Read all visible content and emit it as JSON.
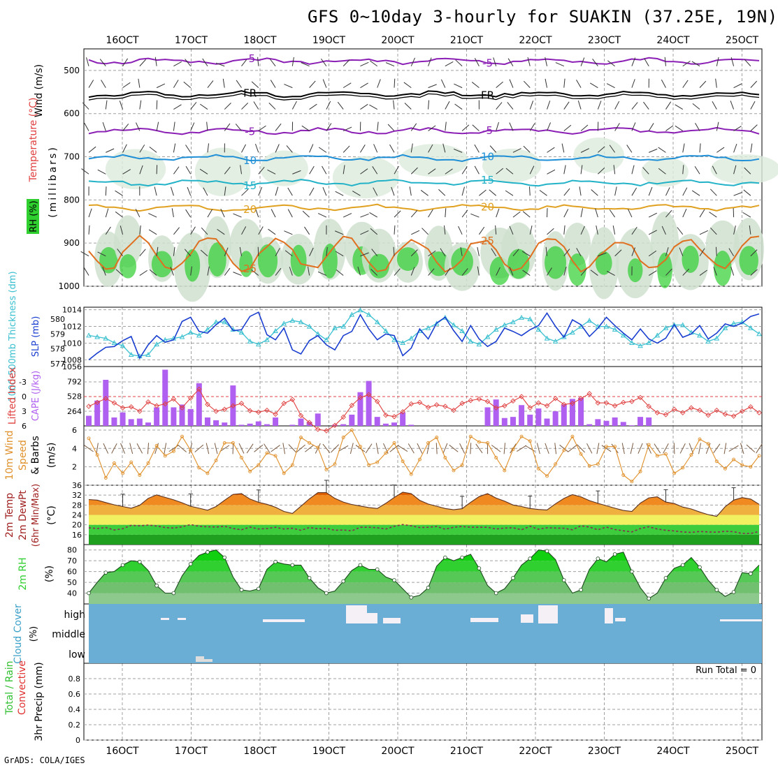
{
  "title": "GFS 0~10day 3-hourly for SUAKIN (37.25E, 19N)",
  "credit": "GrADS: COLA/IGES",
  "dates": [
    "16OCT",
    "17OCT",
    "18OCT",
    "19OCT",
    "20OCT",
    "21OCT",
    "22OCT",
    "23OCT",
    "24OCT",
    "25OCT"
  ],
  "colors": {
    "frame": "#000000",
    "grid": "#a0a0a0",
    "purple": "#8b1fb5",
    "blue": "#1e8fd6",
    "cyan": "#22b2c8",
    "orange": "#e0a020",
    "slp": "#1a3fd0",
    "thickness": "#3ac0d0",
    "cape_bar": "#b060f0",
    "lifted": "#e04040",
    "wind": "#e0902a",
    "cloud_bg": "#6aaed6",
    "rh_green": "#2fcf2f"
  },
  "panels": {
    "upper_air": {
      "ylabel_parts": [
        "Wind (m/s)",
        "Temperature (°C)",
        "RH (%)"
      ],
      "ylabel_units": "(millibars)",
      "yticks": [
        "500",
        "600",
        "700",
        "800",
        "900",
        "1000"
      ],
      "isotherms": [
        {
          "label": "-5",
          "color": "#8b1fb5",
          "level_mb": 478
        },
        {
          "label": "FR",
          "color": "#000000",
          "level_mb": 555
        },
        {
          "label": "-5",
          "color": "#8b1fb5",
          "level_mb": 640
        },
        {
          "label": "10",
          "color": "#1e8fd6",
          "level_mb": 703
        },
        {
          "label": "15",
          "color": "#22b2c8",
          "level_mb": 760
        },
        {
          "label": "20",
          "color": "#e0a020",
          "level_mb": 818
        },
        {
          "label": "25",
          "color": "#e07020",
          "level_mb": 925
        }
      ],
      "rh_contours": [
        "30",
        "50"
      ]
    },
    "slp_thickness": {
      "ylabel_left": "1000-500mb Thickness (dm)",
      "ylabel_right": "SLP (mb)",
      "left_ticks": [
        "580",
        "579",
        "578",
        "577"
      ],
      "right_ticks": [
        "1014",
        "1012",
        "1010",
        "1008"
      ]
    },
    "lifted_cape": {
      "ylabel_left": "Lifted Index",
      "ylabel_right": "CAPE (J/kg)",
      "left_ticks": [
        "-3",
        "0",
        "3",
        "6"
      ],
      "right_ticks": [
        "1056",
        "792",
        "528",
        "264"
      ]
    },
    "wind10m": {
      "ylabel": [
        "10m Wind",
        "Speed",
        "& Barbs"
      ],
      "units": "(m/s)",
      "ticks": [
        "6",
        "4",
        "2"
      ]
    },
    "temp2m": {
      "ylabel": [
        "2m Temp",
        "2m DewPt",
        "(6hr Min/Max)"
      ],
      "units": "(°C)",
      "ticks": [
        "36",
        "32",
        "28",
        "24",
        "20",
        "16"
      ]
    },
    "rh2m": {
      "ylabel": "2m RH",
      "units": "(%)",
      "ticks": [
        "80",
        "70",
        "60",
        "50",
        "40"
      ]
    },
    "cloud": {
      "ylabel": "Cloud Cover",
      "units": "(%)",
      "levels": [
        "high",
        "middle",
        "low"
      ]
    },
    "precip": {
      "ylabel_parts": [
        "Total / Rain",
        "Convective"
      ],
      "units": "3hr Precip (mm)",
      "ticks": [
        "0.8",
        "0.6",
        "0.4",
        "0.2",
        "0"
      ],
      "run_total": "Run Total = 0"
    }
  },
  "chart_data": [
    {
      "type": "line",
      "name_hint": "SLP",
      "x_start": "15OCT 12Z",
      "step_hours": 3,
      "series": [
        {
          "name": "SLP (mb)",
          "values": [
            1008.0,
            1008.8,
            1009.5,
            1009.6,
            1010.3,
            1010.8,
            1008.2,
            1009.8,
            1010.9,
            1010.1,
            1010.4,
            1012.6,
            1013.1,
            1011.4,
            1011.2,
            1012.2,
            1013.0,
            1011.5,
            1011.6,
            1013.2,
            1013.7,
            1011.0,
            1010.4,
            1011.8,
            1009.2,
            1008.7,
            1010.3,
            1010.9,
            1009.8,
            1009.2,
            1010.9,
            1011.4,
            1013.4,
            1011.7,
            1010.4,
            1011.1,
            1010.9,
            1008.5,
            1009.4,
            1011.7,
            1010.5,
            1012.4,
            1013.1,
            1011.5,
            1010.2,
            1012.1,
            1010.5,
            1009.6,
            1010.2,
            1011.8,
            1011.4,
            1010.9,
            1011.6,
            1012.1,
            1013.6,
            1012.0,
            1010.7,
            1012.8,
            1012.2,
            1010.8,
            1011.8,
            1013.1,
            1012.1,
            1011.2,
            1010.4,
            1011.7,
            1010.5,
            1010.0,
            1010.6,
            1012.2,
            1010.7,
            1011.1,
            1012.1,
            1010.5,
            1011.2,
            1012.3,
            1012.0,
            1012.4,
            1013.2,
            1013.5
          ]
        }
      ]
    },
    {
      "type": "line",
      "name_hint": "Thickness",
      "series": [
        {
          "name": "Thickness (dm)",
          "values": [
            578.9,
            578.8,
            578.7,
            578.4,
            578.2,
            577.6,
            577.5,
            577.6,
            578.3,
            578.6,
            578.7,
            578.8,
            579.1,
            578.9,
            579.3,
            579.8,
            579.8,
            579.3,
            579.1,
            578.5,
            578.3,
            578.6,
            579.2,
            579.7,
            579.9,
            579.8,
            579.5,
            579.0,
            578.6,
            579.4,
            579.5,
            580.3,
            580.6,
            580.3,
            579.8,
            579.2,
            578.6,
            578.4,
            578.7,
            579.2,
            579.4,
            579.7,
            580.1,
            579.6,
            579.2,
            578.5,
            578.3,
            578.8,
            579.3,
            579.6,
            579.8,
            580.1,
            580.0,
            579.3,
            578.7,
            578.5,
            578.8,
            579.1,
            579.5,
            579.9,
            579.5,
            579.5,
            579.3,
            578.9,
            578.4,
            578.2,
            578.4,
            578.9,
            579.4,
            579.6,
            579.6,
            579.1,
            578.9,
            578.5,
            578.7,
            579.4,
            579.7,
            579.8,
            579.4,
            579.0
          ]
        }
      ]
    },
    {
      "type": "bar",
      "name_hint": "CAPE",
      "series": [
        {
          "name": "CAPE (J/kg)",
          "values": [
            180,
            450,
            820,
            150,
            240,
            120,
            130,
            60,
            330,
            1000,
            330,
            380,
            300,
            760,
            150,
            100,
            60,
            720,
            20,
            40,
            80,
            30,
            150,
            0,
            20,
            130,
            70,
            220,
            0,
            20,
            30,
            200,
            600,
            800,
            160,
            40,
            60,
            240,
            20,
            0,
            0,
            0,
            0,
            0,
            0,
            0,
            0,
            330,
            470,
            140,
            160,
            370,
            200,
            310,
            130,
            260,
            380,
            480,
            500,
            30,
            120,
            90,
            150,
            70,
            10,
            160,
            150,
            0,
            0,
            0,
            0,
            0,
            0,
            0,
            0,
            0,
            0,
            0,
            0,
            0
          ]
        }
      ]
    },
    {
      "type": "line",
      "name_hint": "Lifted Index",
      "series": [
        {
          "name": "Lifted Index",
          "values": [
            2.0,
            1.2,
            0.4,
            1.3,
            2.3,
            2.1,
            3.0,
            1.1,
            1.9,
            1.5,
            0.5,
            2.3,
            0.3,
            -1.5,
            1.6,
            3.0,
            2.6,
            1.9,
            1.4,
            2.9,
            3.2,
            2.8,
            3.6,
            1.4,
            0.6,
            3.9,
            5.3,
            6.7,
            7.0,
            5.9,
            4.2,
            1.8,
            0.2,
            -0.4,
            1.0,
            3.8,
            4.1,
            3.1,
            1.5,
            1.2,
            2.2,
            1.7,
            2.0,
            2.8,
            1.4,
            0.8,
            0.5,
            1.0,
            2.3,
            1.9,
            0.9,
            0.0,
            2.3,
            1.3,
            1.9,
            0.4,
            1.6,
            1.4,
            0.4,
            -0.6,
            1.3,
            1.3,
            1.9,
            1.2,
            1.0,
            0.2,
            2.0,
            3.3,
            3.7,
            2.6,
            3.3,
            2.3,
            2.8,
            3.8,
            2.8,
            3.6,
            4.0,
            3.0,
            2.1,
            3.3
          ]
        }
      ]
    },
    {
      "type": "line",
      "name_hint": "10m Wind Speed",
      "series": [
        {
          "name": "10m Wind Speed (m/s)",
          "values": [
            5.1,
            3.3,
            0.8,
            2.4,
            1.3,
            2.5,
            1.1,
            2.4,
            4.3,
            3.2,
            3.7,
            5.3,
            3.8,
            1.9,
            1.3,
            2.7,
            4.6,
            4.6,
            3.0,
            1.5,
            2.2,
            3.5,
            3.2,
            1.3,
            2.2,
            5.2,
            4.6,
            4.1,
            1.7,
            2.3,
            5.2,
            6.0,
            4.2,
            2.2,
            2.5,
            3.5,
            4.6,
            2.6,
            1.2,
            2.8,
            4.6,
            5.2,
            3.0,
            1.6,
            2.2,
            5.3,
            4.7,
            4.6,
            3.0,
            1.6,
            3.9,
            5.3,
            4.8,
            1.8,
            1.0,
            2.3,
            3.8,
            5.3,
            3.4,
            2.1,
            2.3,
            4.2,
            4.2,
            1.1,
            0.4,
            1.5,
            4.4,
            3.2,
            3.4,
            1.3,
            1.9,
            3.3,
            5.0,
            4.5,
            2.6,
            1.8,
            2.8,
            2.2,
            2.0,
            3.2
          ]
        }
      ]
    },
    {
      "type": "area",
      "name_hint": "2m Temp",
      "series": [
        {
          "name": "2m Temp (°C)",
          "values": [
            30.2,
            30.0,
            29.0,
            28.1,
            27.4,
            26.7,
            27.9,
            30.7,
            32.1,
            31.1,
            30.1,
            28.9,
            27.5,
            26.7,
            25.9,
            27.4,
            29.9,
            32.3,
            32.6,
            30.4,
            29.1,
            28.3,
            27.1,
            25.4,
            24.6,
            27.5,
            30.5,
            33.0,
            33.0,
            30.7,
            29.2,
            28.2,
            27.6,
            27.0,
            26.6,
            28.7,
            31.1,
            33.2,
            32.6,
            29.9,
            28.4,
            27.5,
            26.6,
            26.1,
            26.5,
            29.1,
            31.4,
            32.6,
            30.8,
            29.6,
            28.0,
            27.4,
            26.6,
            26.2,
            26.0,
            28.5,
            30.7,
            32.2,
            31.3,
            29.8,
            28.7,
            27.7,
            26.7,
            25.8,
            25.4,
            28.8,
            30.9,
            31.3,
            29.2,
            28.6,
            27.2,
            26.4,
            25.2,
            24.1,
            23.4,
            27.3,
            30.0,
            31.0,
            30.4,
            28.3
          ]
        },
        {
          "name": "2m DewPt (°C)",
          "values": [
            18.8,
            18.5,
            18.9,
            17.9,
            18.4,
            19.8,
            19.6,
            19.9,
            19.5,
            18.9,
            18.7,
            19.2,
            20.1,
            19.4,
            19.2,
            19.1,
            19.4,
            18.5,
            18.0,
            19.1,
            18.3,
            18.5,
            19.0,
            18.3,
            18.6,
            17.8,
            18.9,
            18.4,
            18.6,
            17.8,
            17.9,
            17.6,
            19.0,
            19.0,
            18.8,
            18.3,
            19.4,
            20.1,
            19.6,
            18.9,
            19.0,
            19.3,
            18.2,
            19.0,
            19.3,
            19.0,
            19.0,
            19.0,
            18.3,
            18.7,
            18.8,
            18.0,
            19.4,
            18.2,
            18.8,
            18.7,
            18.6,
            18.0,
            19.6,
            19.1,
            18.0,
            19.1,
            18.1,
            17.6,
            17.1,
            18.5,
            19.2,
            18.3,
            17.8,
            17.5,
            17.1,
            16.9,
            17.3,
            17.1,
            17.0,
            17.4,
            17.2,
            16.5,
            16.5,
            17.3
          ]
        }
      ]
    },
    {
      "type": "area",
      "name_hint": "2m RH",
      "series": [
        {
          "name": "2m RH (%)",
          "values": [
            40,
            50,
            59,
            60,
            66,
            70,
            69,
            61,
            47,
            40,
            40,
            56,
            67,
            75,
            78,
            80,
            73,
            55,
            43,
            42,
            44,
            62,
            69,
            67,
            66,
            66,
            54,
            45,
            40,
            42,
            51,
            61,
            66,
            62,
            62,
            55,
            52,
            44,
            36,
            38,
            45,
            65,
            73,
            70,
            73,
            76,
            63,
            47,
            40,
            44,
            54,
            66,
            72,
            80,
            79,
            71,
            52,
            40,
            43,
            62,
            72,
            69,
            76,
            78,
            60,
            45,
            35,
            40,
            54,
            63,
            66,
            73,
            64,
            52,
            43,
            37,
            41,
            59,
            58,
            66
          ]
        }
      ]
    },
    {
      "type": "bar",
      "name_hint": "3hr Precip",
      "ylim": [
        0,
        1
      ],
      "series": [
        {
          "name": "3hr Precip (mm)",
          "values": [
            0,
            0,
            0,
            0,
            0,
            0,
            0,
            0,
            0,
            0,
            0,
            0,
            0,
            0,
            0,
            0,
            0,
            0,
            0,
            0,
            0,
            0,
            0,
            0,
            0,
            0,
            0,
            0,
            0,
            0,
            0,
            0,
            0,
            0,
            0,
            0,
            0,
            0,
            0,
            0,
            0,
            0,
            0,
            0,
            0,
            0,
            0,
            0,
            0,
            0,
            0,
            0,
            0,
            0,
            0,
            0,
            0,
            0,
            0,
            0,
            0,
            0,
            0,
            0,
            0,
            0,
            0,
            0,
            0,
            0,
            0,
            0,
            0,
            0,
            0,
            0,
            0,
            0,
            0,
            0
          ]
        }
      ]
    }
  ]
}
